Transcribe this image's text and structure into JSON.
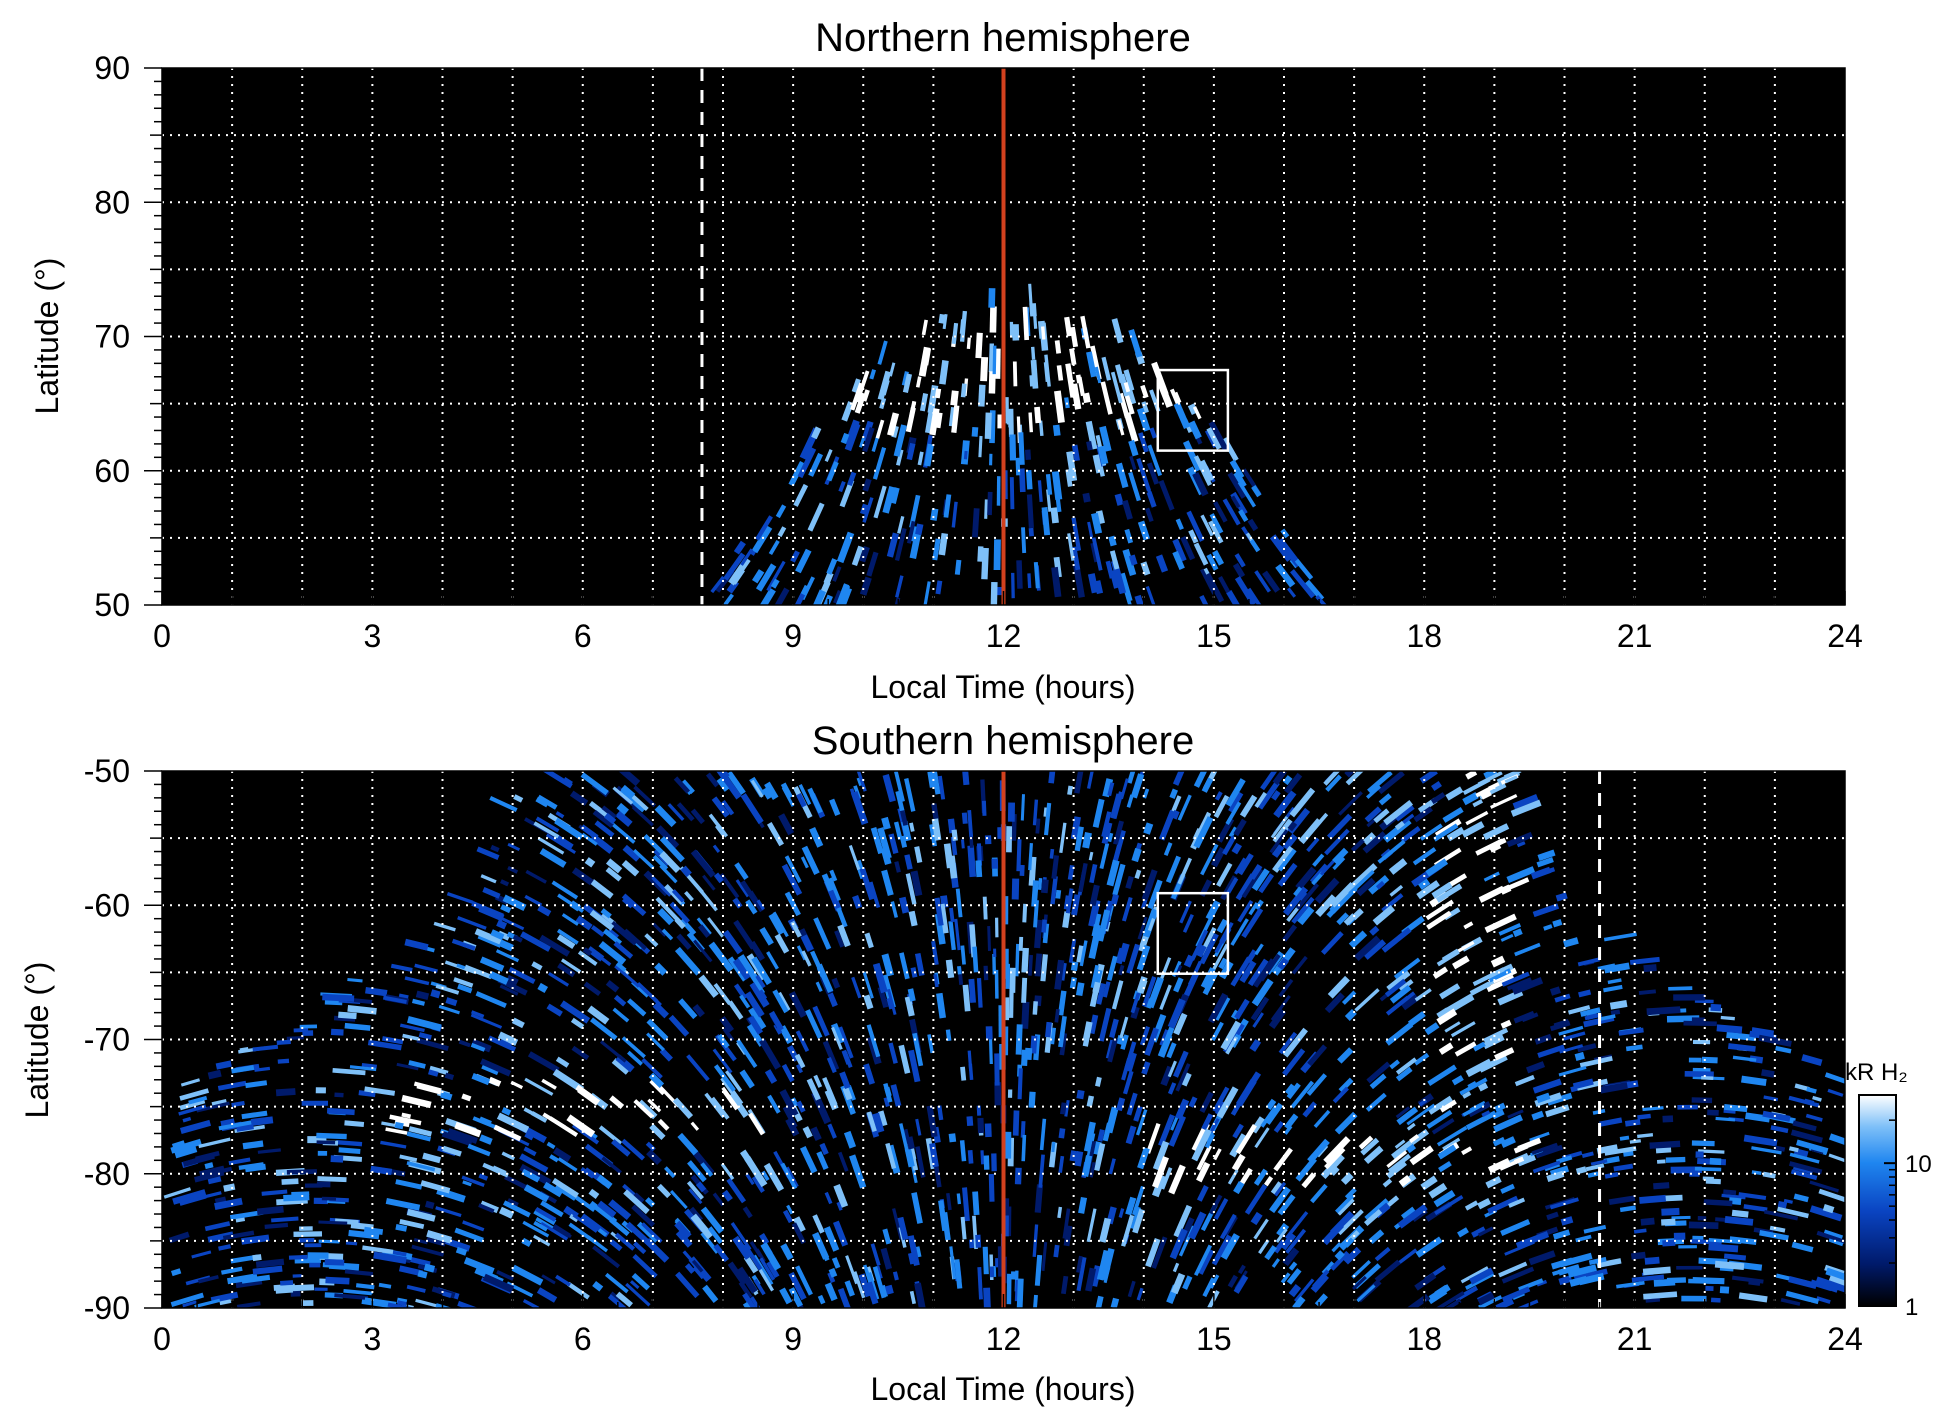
{
  "chart_data": [
    {
      "type": "heatmap",
      "title": "Northern hemisphere",
      "xlabel": "Local Time (hours)",
      "ylabel": "Latitude (°)",
      "xlim": [
        0,
        24
      ],
      "ylim": [
        50,
        90
      ],
      "xticks": [
        0,
        3,
        6,
        9,
        12,
        15,
        18,
        21,
        24
      ],
      "xticklabels": [
        "0",
        "3",
        "6",
        "9",
        "12",
        "15",
        "18",
        "21",
        "24"
      ],
      "yticks": [
        50,
        60,
        70,
        80,
        90
      ],
      "yticklabels": [
        "50",
        "60",
        "70",
        "80",
        "90"
      ],
      "grid": true,
      "grid_x": [
        1,
        2,
        3,
        4,
        5,
        6,
        7,
        8,
        9,
        10,
        11,
        12,
        13,
        14,
        15,
        16,
        17,
        18,
        19,
        20,
        21,
        22,
        23
      ],
      "grid_y": [
        55,
        60,
        65,
        70,
        75,
        80,
        85
      ],
      "background_color": "#000000",
      "coverage": "dayside arc spanning 7.7–16.6 h LT, reaching ~73° at noon",
      "emission_features": [
        {
          "lt_range": [
            9.5,
            15.5
          ],
          "lat_range": [
            63,
            72
          ],
          "intensity": "bright"
        },
        {
          "lt_range": [
            8,
            16.5
          ],
          "lat_range": [
            50,
            63
          ],
          "intensity": "patchy"
        }
      ],
      "noon_line": {
        "x": 12,
        "color": "#d2411e"
      },
      "dashed_line": {
        "x": 7.7,
        "color": "#ffffff"
      },
      "box": {
        "x": [
          14.2,
          15.2
        ],
        "y": [
          61.5,
          67.5
        ],
        "color": "#ffffff"
      }
    },
    {
      "type": "heatmap",
      "title": "Southern hemisphere",
      "xlabel": "Local Time (hours)",
      "ylabel": "Latitude (°)",
      "xlim": [
        0,
        24
      ],
      "ylim": [
        -90,
        -50
      ],
      "xticks": [
        0,
        3,
        6,
        9,
        12,
        15,
        18,
        21,
        24
      ],
      "xticklabels": [
        "0",
        "3",
        "6",
        "9",
        "12",
        "15",
        "18",
        "21",
        "24"
      ],
      "yticks": [
        -90,
        -80,
        -70,
        -60,
        -50
      ],
      "yticklabels": [
        "-90",
        "-80",
        "-70",
        "-60",
        "-50"
      ],
      "grid": true,
      "grid_x": [
        1,
        2,
        3,
        4,
        5,
        6,
        7,
        8,
        9,
        10,
        11,
        12,
        13,
        14,
        15,
        16,
        17,
        18,
        19,
        20,
        21,
        22,
        23
      ],
      "grid_y": [
        -85,
        -80,
        -75,
        -70,
        -65,
        -60,
        -55
      ],
      "background_color": "#000000",
      "coverage": "wide bowl spanning all local times at the pole, narrowing to 5–19.5 h LT at -50°",
      "emission_features": [
        {
          "lt_range": [
            3,
            8.5
          ],
          "lat_range": [
            -77,
            -73
          ],
          "intensity": "bright oval"
        },
        {
          "lt_range": [
            14,
            19.5
          ],
          "lat_range": [
            -81,
            -77
          ],
          "intensity": "bright oval"
        },
        {
          "lt_range": [
            18.2,
            19.3
          ],
          "lat_range": [
            -75,
            -50
          ],
          "intensity": "bright band"
        },
        {
          "lt_range": [
            5,
            19
          ],
          "lat_range": [
            -70,
            -50
          ],
          "intensity": "patchy"
        }
      ],
      "noon_line": {
        "x": 12,
        "color": "#d2411e"
      },
      "dashed_line": {
        "x": 20.5,
        "color": "#ffffff"
      },
      "box": {
        "x": [
          14.2,
          15.2
        ],
        "y": [
          -65.1,
          -59.1
        ],
        "color": "#ffffff"
      }
    }
  ],
  "colorbar": {
    "title": "kR H₂",
    "scale": "log",
    "range": [
      1,
      30
    ],
    "ticks": [
      1,
      10
    ],
    "ticklabels": [
      "1",
      "10"
    ],
    "colors": [
      "#000000",
      "#001a6b",
      "#0a44c2",
      "#1f86f0",
      "#7ec0f8",
      "#ffffff"
    ]
  }
}
